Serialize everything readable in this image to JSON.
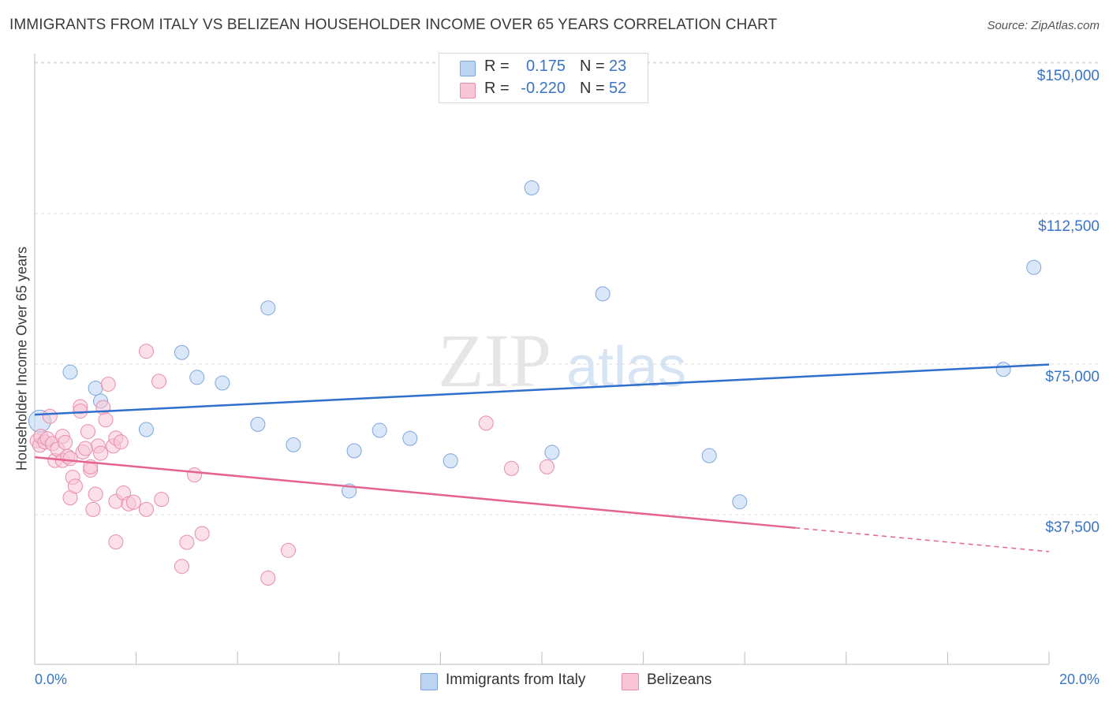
{
  "title": "IMMIGRANTS FROM ITALY VS BELIZEAN HOUSEHOLDER INCOME OVER 65 YEARS CORRELATION CHART",
  "source": "Source: ZipAtlas.com",
  "watermark": {
    "zip": "ZIP",
    "atlas": "atlas"
  },
  "stats": [
    {
      "r_label": "R =",
      "r_value": "0.175",
      "n_label": "N =",
      "n_value": "23",
      "color": "#a9c8ee"
    },
    {
      "r_label": "R =",
      "r_value": "-0.220",
      "n_label": "N =",
      "n_value": "52",
      "color": "#f6b4c8"
    }
  ],
  "legend": [
    {
      "label": "Immigrants from Italy",
      "color": "#a9c8ee"
    },
    {
      "label": "Belizeans",
      "color": "#f6b4c8"
    }
  ],
  "colors": {
    "blue_line": "#2f6fce",
    "pink_line": "#e4638f",
    "blue_fill": "#bcd4f2",
    "pink_fill": "#f8c6d6",
    "tick_text": "#3a74c4"
  },
  "chart_data": {
    "type": "scatter",
    "title": "IMMIGRANTS FROM ITALY VS BELIZEAN HOUSEHOLDER INCOME OVER 65 YEARS CORRELATION CHART",
    "xlabel": "",
    "ylabel": "Householder Income Over 65 years",
    "x_tick_labels": [
      "0.0%",
      "20.0%"
    ],
    "y_tick_labels": [
      "$37,500",
      "$75,000",
      "$112,500",
      "$150,000"
    ],
    "y_tick_values": [
      37500,
      75000,
      112500,
      150000
    ],
    "xlim": [
      0,
      20
    ],
    "ylim": [
      0,
      154000
    ],
    "grid": true,
    "legend_position": "bottom-center",
    "series": [
      {
        "name": "Immigrants from Italy",
        "color": "#a9c8ee",
        "trend": {
          "x": [
            0,
            20
          ],
          "y": [
            62400,
            74900
          ]
        },
        "points": [
          [
            0.1,
            60800
          ],
          [
            0.7,
            73000
          ],
          [
            1.2,
            69000
          ],
          [
            1.3,
            65800
          ],
          [
            2.2,
            58700
          ],
          [
            2.9,
            77900
          ],
          [
            3.2,
            71700
          ],
          [
            3.7,
            70300
          ],
          [
            4.4,
            60000
          ],
          [
            4.6,
            89000
          ],
          [
            5.1,
            54900
          ],
          [
            6.2,
            43400
          ],
          [
            6.3,
            53400
          ],
          [
            6.8,
            58500
          ],
          [
            7.4,
            56500
          ],
          [
            8.2,
            50900
          ],
          [
            9.8,
            118900
          ],
          [
            10.2,
            53000
          ],
          [
            11.2,
            92500
          ],
          [
            13.3,
            52200
          ],
          [
            13.9,
            40700
          ],
          [
            19.1,
            73700
          ],
          [
            19.7,
            99100
          ]
        ]
      },
      {
        "name": "Belizeans",
        "color": "#f6b4c8",
        "trend": {
          "x": [
            0,
            15
          ],
          "y": [
            51800,
            34200
          ]
        },
        "trend_dashed": {
          "x": [
            15,
            20
          ],
          "y": [
            34200,
            28300
          ]
        },
        "points": [
          [
            0.05,
            55900
          ],
          [
            0.1,
            54800
          ],
          [
            0.12,
            57000
          ],
          [
            0.2,
            55600
          ],
          [
            0.25,
            56400
          ],
          [
            0.3,
            62000
          ],
          [
            0.35,
            55200
          ],
          [
            0.4,
            51000
          ],
          [
            0.45,
            53800
          ],
          [
            0.55,
            51000
          ],
          [
            0.55,
            57000
          ],
          [
            0.65,
            52000
          ],
          [
            0.7,
            51500
          ],
          [
            0.7,
            41700
          ],
          [
            0.75,
            46800
          ],
          [
            0.8,
            44600
          ],
          [
            0.95,
            53100
          ],
          [
            0.9,
            64400
          ],
          [
            0.9,
            63300
          ],
          [
            1.05,
            58200
          ],
          [
            1.1,
            48600
          ],
          [
            1.1,
            49400
          ],
          [
            1.15,
            38800
          ],
          [
            1.25,
            54600
          ],
          [
            1.2,
            42600
          ],
          [
            1.3,
            52800
          ],
          [
            1.35,
            64200
          ],
          [
            1.4,
            61100
          ],
          [
            1.45,
            70000
          ],
          [
            1.55,
            54600
          ],
          [
            1.6,
            56600
          ],
          [
            1.6,
            40800
          ],
          [
            1.7,
            55600
          ],
          [
            1.75,
            42900
          ],
          [
            1.6,
            30700
          ],
          [
            1.85,
            40200
          ],
          [
            1.95,
            40600
          ],
          [
            2.2,
            78200
          ],
          [
            2.2,
            38800
          ],
          [
            2.5,
            41300
          ],
          [
            2.45,
            70700
          ],
          [
            2.9,
            24600
          ],
          [
            3.0,
            30600
          ],
          [
            3.15,
            47400
          ],
          [
            3.3,
            32800
          ],
          [
            4.6,
            21700
          ],
          [
            5.0,
            28600
          ],
          [
            8.9,
            60300
          ],
          [
            9.4,
            49000
          ],
          [
            10.1,
            49400
          ],
          [
            1.0,
            54000
          ],
          [
            0.6,
            55500
          ]
        ]
      }
    ]
  }
}
